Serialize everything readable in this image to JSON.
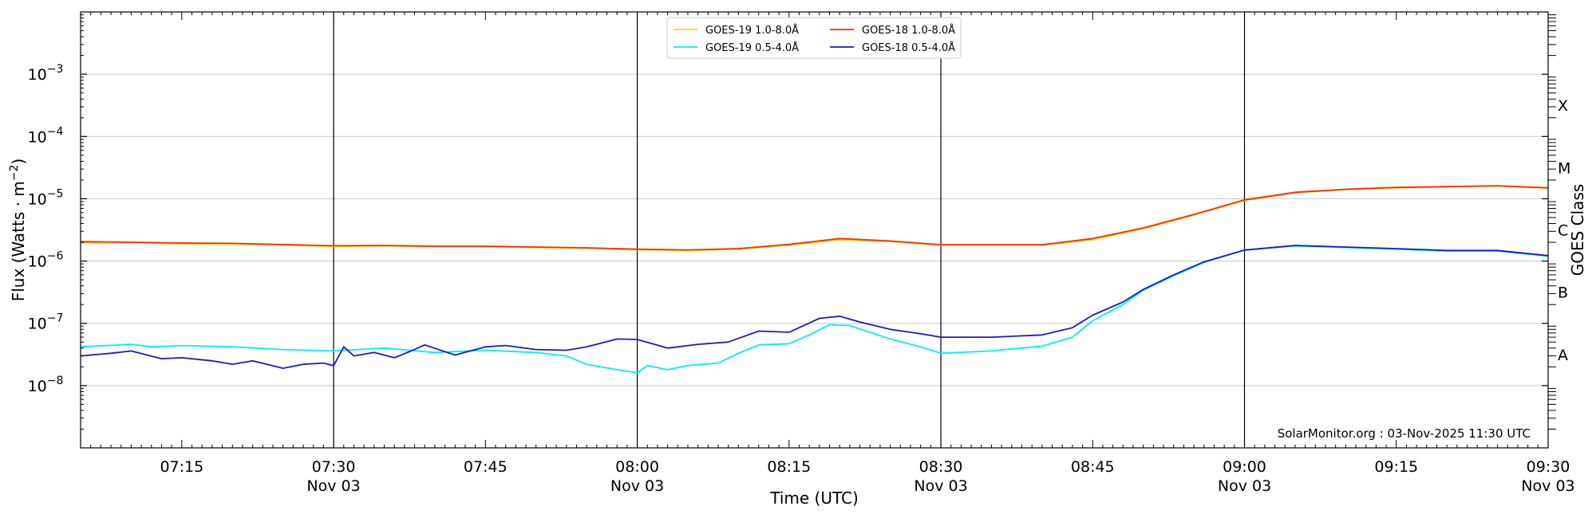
{
  "chart_data": {
    "type": "line",
    "title": "",
    "xlabel": "Time (UTC)",
    "ylabel": "Flux (Watts · m⁻²)",
    "ylabel_right": "GOES Class",
    "y_scale": "log",
    "ylim": [
      1e-09,
      0.01
    ],
    "xlim": [
      "2025-11-03 07:05",
      "2025-11-03 09:30"
    ],
    "grid": "horizontal",
    "legend_position": "top-center",
    "credit": "SolarMonitor.org : 03-Nov-2025 11:30 UTC",
    "x_ticks": [
      {
        "time": "07:15",
        "label": "07:15",
        "date": ""
      },
      {
        "time": "07:30",
        "label": "07:30",
        "date": "Nov 03"
      },
      {
        "time": "07:45",
        "label": "07:45",
        "date": ""
      },
      {
        "time": "08:00",
        "label": "08:00",
        "date": "Nov 03"
      },
      {
        "time": "08:15",
        "label": "08:15",
        "date": ""
      },
      {
        "time": "08:30",
        "label": "08:30",
        "date": "Nov 03"
      },
      {
        "time": "08:45",
        "label": "08:45",
        "date": ""
      },
      {
        "time": "09:00",
        "label": "09:00",
        "date": "Nov 03"
      },
      {
        "time": "09:15",
        "label": "09:15",
        "date": ""
      },
      {
        "time": "09:30",
        "label": "09:30",
        "date": "Nov 03"
      }
    ],
    "vlines": [
      "07:30",
      "08:00",
      "08:30",
      "09:00"
    ],
    "y_ticks": [
      {
        "value": 1e-08,
        "base": "10",
        "exp": "−8"
      },
      {
        "value": 1e-07,
        "base": "10",
        "exp": "−7"
      },
      {
        "value": 1e-06,
        "base": "10",
        "exp": "−6"
      },
      {
        "value": 1e-05,
        "base": "10",
        "exp": "−5"
      },
      {
        "value": 0.0001,
        "base": "10",
        "exp": "−4"
      },
      {
        "value": 0.001,
        "base": "10",
        "exp": "−3"
      }
    ],
    "goes_classes": [
      {
        "label": "A",
        "value": 3.16e-08
      },
      {
        "label": "B",
        "value": 3.16e-07
      },
      {
        "label": "C",
        "value": 3.16e-06
      },
      {
        "label": "M",
        "value": 3.16e-05
      },
      {
        "label": "X",
        "value": 0.000316
      }
    ],
    "series": [
      {
        "name": "GOES-19 1.0-8.0Å",
        "color": "#FFD700",
        "points": [
          [
            "07:05",
            1.95e-06
          ],
          [
            "07:10",
            1.95e-06
          ],
          [
            "07:15",
            1.9e-06
          ],
          [
            "07:20",
            1.88e-06
          ],
          [
            "07:25",
            1.8e-06
          ],
          [
            "07:30",
            1.72e-06
          ],
          [
            "07:35",
            1.75e-06
          ],
          [
            "07:40",
            1.7e-06
          ],
          [
            "07:45",
            1.7e-06
          ],
          [
            "07:50",
            1.65e-06
          ],
          [
            "07:55",
            1.6e-06
          ],
          [
            "08:00",
            1.52e-06
          ],
          [
            "08:05",
            1.48e-06
          ],
          [
            "08:10",
            1.55e-06
          ],
          [
            "08:15",
            1.8e-06
          ],
          [
            "08:20",
            2.2e-06
          ],
          [
            "08:25",
            2.05e-06
          ],
          [
            "08:30",
            1.8e-06
          ],
          [
            "08:35",
            1.8e-06
          ],
          [
            "08:40",
            1.8e-06
          ],
          [
            "08:45",
            2.2e-06
          ],
          [
            "08:50",
            3.3e-06
          ],
          [
            "08:55",
            5.5e-06
          ],
          [
            "09:00",
            9.4e-06
          ],
          [
            "09:05",
            1.25e-05
          ],
          [
            "09:10",
            1.4e-05
          ],
          [
            "09:15",
            1.5e-05
          ],
          [
            "09:20",
            1.55e-05
          ],
          [
            "09:25",
            1.6e-05
          ],
          [
            "09:30",
            1.48e-05
          ]
        ]
      },
      {
        "name": "GOES-18 1.0-8.0Å",
        "color": "#FF2A00",
        "points": [
          [
            "07:05",
            2.05e-06
          ],
          [
            "07:10",
            2e-06
          ],
          [
            "07:15",
            1.95e-06
          ],
          [
            "07:20",
            1.92e-06
          ],
          [
            "07:25",
            1.84e-06
          ],
          [
            "07:30",
            1.76e-06
          ],
          [
            "07:35",
            1.78e-06
          ],
          [
            "07:40",
            1.73e-06
          ],
          [
            "07:45",
            1.73e-06
          ],
          [
            "07:50",
            1.68e-06
          ],
          [
            "07:55",
            1.63e-06
          ],
          [
            "08:00",
            1.55e-06
          ],
          [
            "08:05",
            1.51e-06
          ],
          [
            "08:10",
            1.58e-06
          ],
          [
            "08:15",
            1.85e-06
          ],
          [
            "08:20",
            2.3e-06
          ],
          [
            "08:25",
            2.1e-06
          ],
          [
            "08:30",
            1.83e-06
          ],
          [
            "08:35",
            1.83e-06
          ],
          [
            "08:40",
            1.83e-06
          ],
          [
            "08:45",
            2.3e-06
          ],
          [
            "08:50",
            3.4e-06
          ],
          [
            "08:55",
            5.6e-06
          ],
          [
            "09:00",
            9.6e-06
          ],
          [
            "09:05",
            1.27e-05
          ],
          [
            "09:10",
            1.42e-05
          ],
          [
            "09:15",
            1.52e-05
          ],
          [
            "09:20",
            1.57e-05
          ],
          [
            "09:25",
            1.62e-05
          ],
          [
            "09:30",
            1.5e-05
          ]
        ]
      },
      {
        "name": "GOES-19 0.5-4.0Å",
        "color": "#00F0F0",
        "points": [
          [
            "07:05",
            4.2e-08
          ],
          [
            "07:10",
            4.6e-08
          ],
          [
            "07:12",
            4.2e-08
          ],
          [
            "07:15",
            4.4e-08
          ],
          [
            "07:20",
            4.2e-08
          ],
          [
            "07:25",
            3.8e-08
          ],
          [
            "07:30",
            3.6e-08
          ],
          [
            "07:35",
            4e-08
          ],
          [
            "07:40",
            3.4e-08
          ],
          [
            "07:45",
            3.7e-08
          ],
          [
            "07:50",
            3.4e-08
          ],
          [
            "07:53",
            3e-08
          ],
          [
            "07:55",
            2.2e-08
          ],
          [
            "07:58",
            1.8e-08
          ],
          [
            "08:00",
            1.6e-08
          ],
          [
            "08:01",
            2.1e-08
          ],
          [
            "08:03",
            1.8e-08
          ],
          [
            "08:05",
            2.1e-08
          ],
          [
            "08:08",
            2.3e-08
          ],
          [
            "08:10",
            3.3e-08
          ],
          [
            "08:12",
            4.5e-08
          ],
          [
            "08:15",
            4.7e-08
          ],
          [
            "08:17",
            6.5e-08
          ],
          [
            "08:19",
            9.5e-08
          ],
          [
            "08:21",
            9.2e-08
          ],
          [
            "08:25",
            5.6e-08
          ],
          [
            "08:28",
            4.2e-08
          ],
          [
            "08:30",
            3.3e-08
          ],
          [
            "08:35",
            3.6e-08
          ],
          [
            "08:40",
            4.3e-08
          ],
          [
            "08:43",
            6e-08
          ],
          [
            "08:45",
            1.1e-07
          ],
          [
            "08:48",
            2e-07
          ],
          [
            "08:50",
            3.4e-07
          ],
          [
            "08:53",
            5.8e-07
          ],
          [
            "08:56",
            9.5e-07
          ],
          [
            "09:00",
            1.5e-06
          ],
          [
            "09:05",
            1.75e-06
          ],
          [
            "09:10",
            1.65e-06
          ],
          [
            "09:15",
            1.55e-06
          ],
          [
            "09:20",
            1.45e-06
          ],
          [
            "09:25",
            1.45e-06
          ],
          [
            "09:30",
            1.2e-06
          ]
        ]
      },
      {
        "name": "GOES-18 0.5-4.0Å",
        "color": "#1A1ACC",
        "points": [
          [
            "07:05",
            3e-08
          ],
          [
            "07:08",
            3.3e-08
          ],
          [
            "07:10",
            3.6e-08
          ],
          [
            "07:13",
            2.7e-08
          ],
          [
            "07:15",
            2.8e-08
          ],
          [
            "07:18",
            2.5e-08
          ],
          [
            "07:20",
            2.2e-08
          ],
          [
            "07:22",
            2.5e-08
          ],
          [
            "07:25",
            1.9e-08
          ],
          [
            "07:27",
            2.2e-08
          ],
          [
            "07:29",
            2.3e-08
          ],
          [
            "07:30",
            2.1e-08
          ],
          [
            "07:31",
            4.2e-08
          ],
          [
            "07:32",
            3e-08
          ],
          [
            "07:34",
            3.4e-08
          ],
          [
            "07:36",
            2.8e-08
          ],
          [
            "07:38",
            3.8e-08
          ],
          [
            "07:39",
            4.5e-08
          ],
          [
            "07:42",
            3.1e-08
          ],
          [
            "07:45",
            4.2e-08
          ],
          [
            "07:47",
            4.4e-08
          ],
          [
            "07:50",
            3.8e-08
          ],
          [
            "07:53",
            3.7e-08
          ],
          [
            "07:55",
            4.2e-08
          ],
          [
            "07:58",
            5.6e-08
          ],
          [
            "08:00",
            5.5e-08
          ],
          [
            "08:03",
            4e-08
          ],
          [
            "08:06",
            4.6e-08
          ],
          [
            "08:09",
            5e-08
          ],
          [
            "08:12",
            7.5e-08
          ],
          [
            "08:15",
            7.2e-08
          ],
          [
            "08:18",
            1.2e-07
          ],
          [
            "08:20",
            1.3e-07
          ],
          [
            "08:22",
            1.05e-07
          ],
          [
            "08:25",
            8e-08
          ],
          [
            "08:28",
            6.8e-08
          ],
          [
            "08:30",
            6e-08
          ],
          [
            "08:35",
            6e-08
          ],
          [
            "08:40",
            6.5e-08
          ],
          [
            "08:43",
            8.5e-08
          ],
          [
            "08:45",
            1.35e-07
          ],
          [
            "08:48",
            2.2e-07
          ],
          [
            "08:50",
            3.5e-07
          ],
          [
            "08:53",
            6e-07
          ],
          [
            "08:56",
            9.7e-07
          ],
          [
            "09:00",
            1.5e-06
          ],
          [
            "09:05",
            1.78e-06
          ],
          [
            "09:10",
            1.68e-06
          ],
          [
            "09:15",
            1.58e-06
          ],
          [
            "09:20",
            1.48e-06
          ],
          [
            "09:25",
            1.48e-06
          ],
          [
            "09:30",
            1.22e-06
          ]
        ]
      }
    ]
  }
}
